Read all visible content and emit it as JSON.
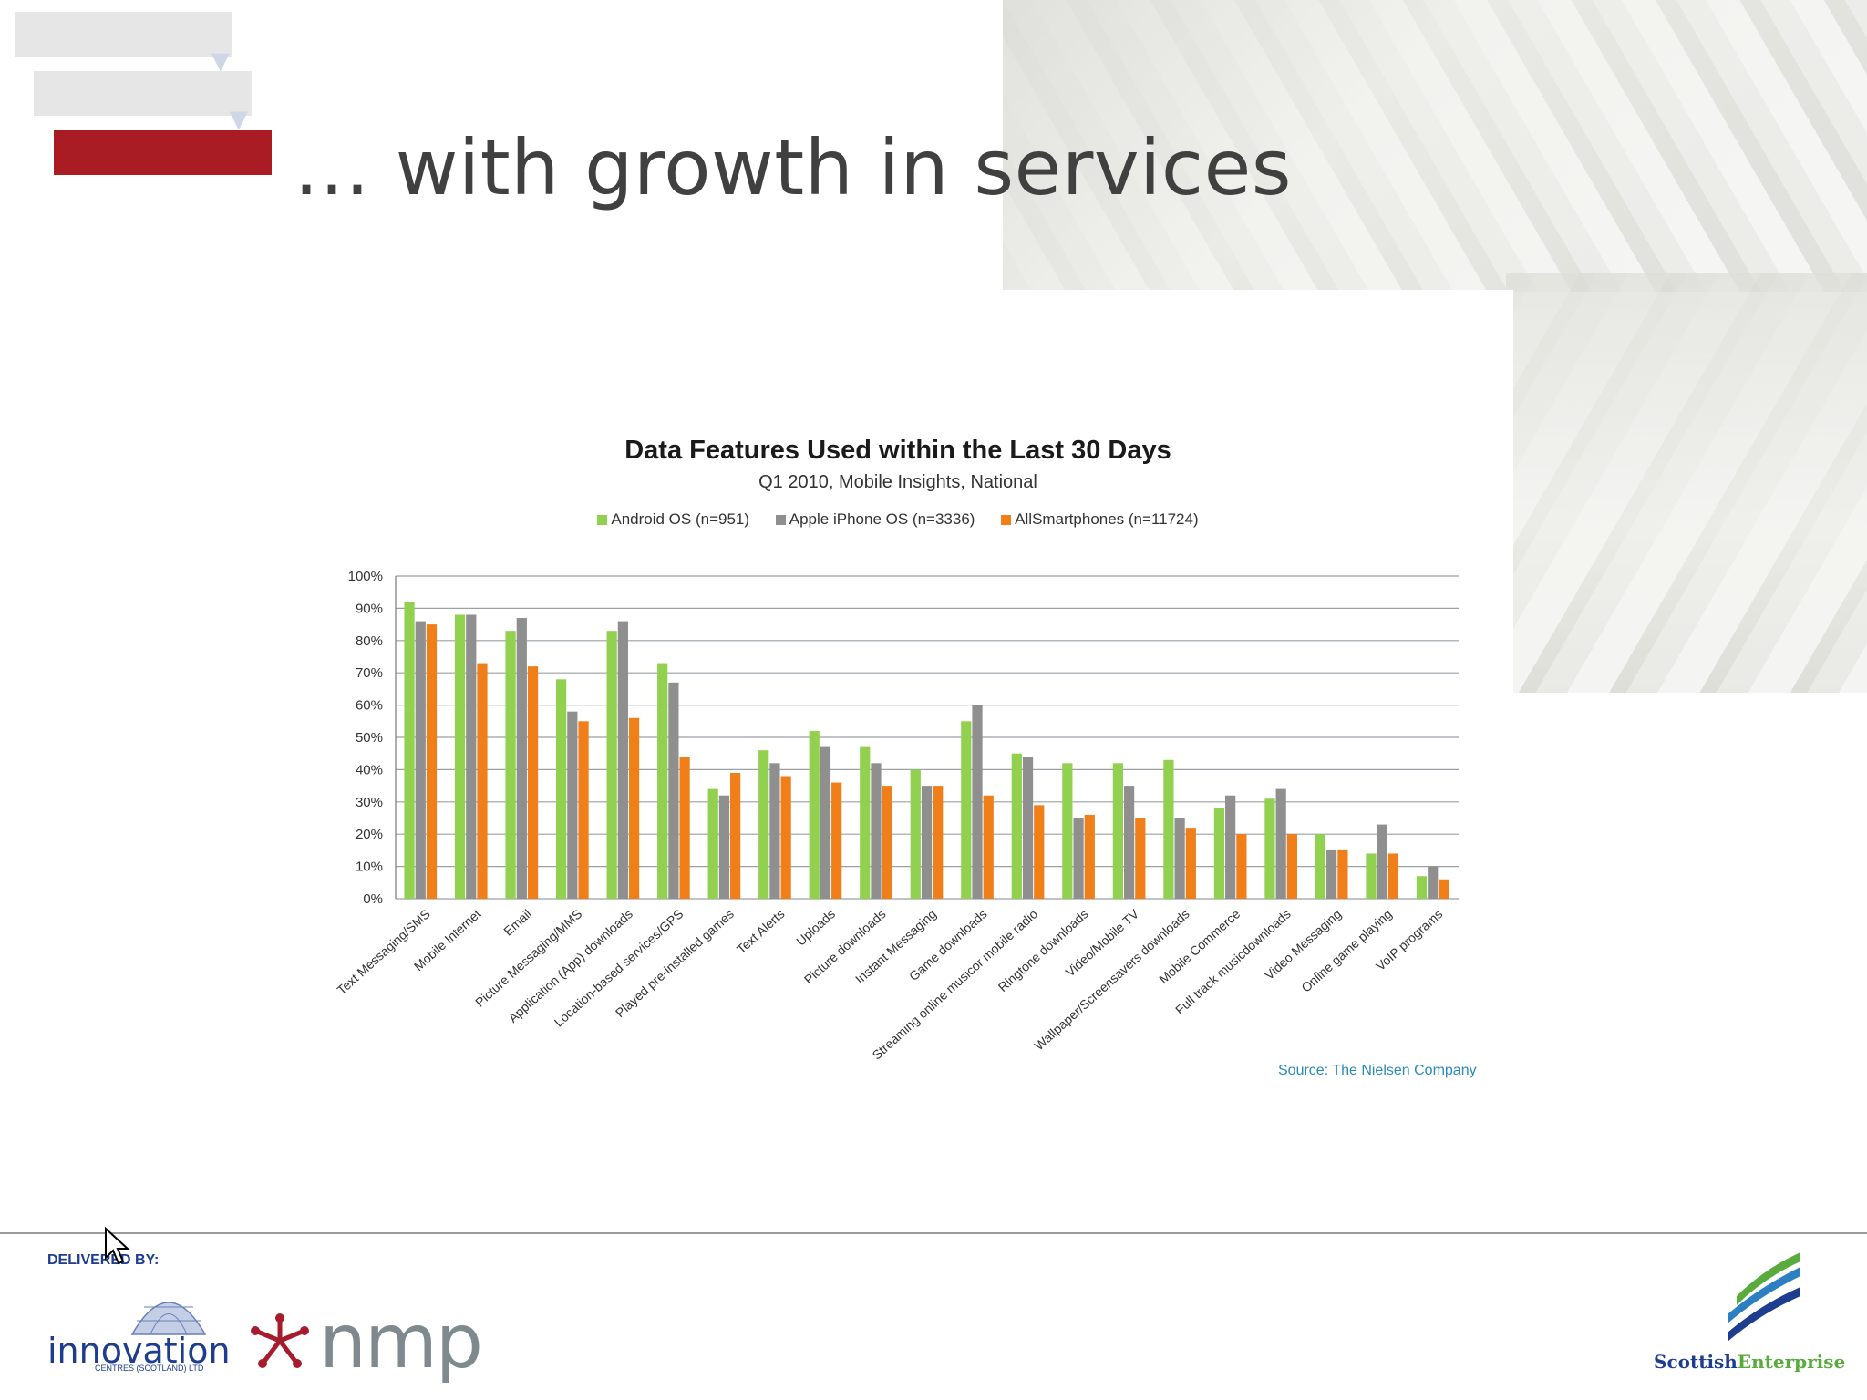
{
  "slide": {
    "title": "… with growth in services"
  },
  "chart_data": {
    "type": "bar",
    "title": "Data Features Used within the Last 30 Days",
    "subtitle": "Q1 2010, Mobile Insights, National",
    "legend_position": "top",
    "grid": true,
    "ylim": [
      0,
      100
    ],
    "yticks": [
      "0%",
      "10%",
      "20%",
      "30%",
      "40%",
      "50%",
      "60%",
      "70%",
      "80%",
      "90%",
      "100%"
    ],
    "categories": [
      "Text Messaging/SMS",
      "Mobile Internet",
      "Email",
      "Picture Messaging/MMS",
      "Application (App) downloads",
      "Location-based services/GPS",
      "Played pre-installed games",
      "Text Alerts",
      "Uploads",
      "Picture downloads",
      "Instant Messaging",
      "Game downloads",
      "Streaming online musicor mobile radio",
      "Ringtone downloads",
      "Video/Mobile TV",
      "Wallpaper/Screensavers downloads",
      "Mobile Commerce",
      "Full track musicdownloads",
      "Video Messaging",
      "Online game playing",
      "VoIP programs"
    ],
    "series": [
      {
        "name": "Android OS (n=951)",
        "color": "#92d050",
        "values": [
          92,
          88,
          83,
          68,
          83,
          73,
          34,
          46,
          52,
          47,
          40,
          55,
          45,
          42,
          42,
          43,
          28,
          31,
          20,
          14,
          7
        ]
      },
      {
        "name": "Apple iPhone OS (n=3336)",
        "color": "#8f8f8f",
        "values": [
          86,
          88,
          87,
          58,
          86,
          67,
          32,
          42,
          47,
          42,
          35,
          60,
          44,
          25,
          35,
          25,
          32,
          34,
          15,
          23,
          10
        ]
      },
      {
        "name": "AllSmartphones (n=11724)",
        "color": "#f07f1a",
        "values": [
          85,
          73,
          72,
          55,
          56,
          44,
          39,
          38,
          36,
          35,
          35,
          32,
          29,
          26,
          25,
          22,
          20,
          20,
          15,
          14,
          6
        ]
      }
    ],
    "source": "Source: The Nielsen Company"
  },
  "footer": {
    "delivered_by": "DELIVERED BY:",
    "innovation": "innovation",
    "innovation_sub": "CENTRES (SCOTLAND) LTD",
    "nmp": "nmp",
    "scottish": "Scottish",
    "enterprise": "Enterprise"
  },
  "colors": {
    "accent_red": "#aa1c24",
    "footer_blue": "#1e3d8f"
  }
}
